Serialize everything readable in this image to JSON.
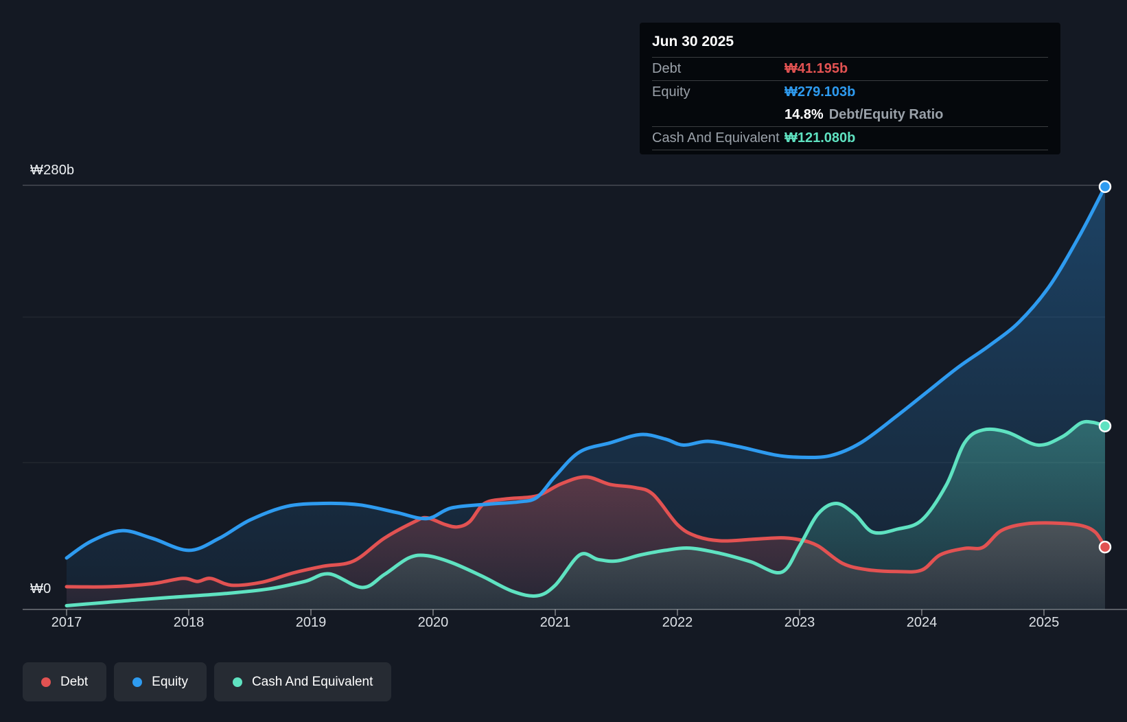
{
  "y_axis": {
    "top_label": "₩280b",
    "zero_label": "₩0"
  },
  "chart_data": {
    "type": "area",
    "x_ticks": [
      "2017",
      "2018",
      "2019",
      "2020",
      "2021",
      "2022",
      "2023",
      "2024",
      "2025"
    ],
    "x_range": [
      2017,
      2025.5
    ],
    "y_range": [
      0,
      280
    ],
    "y_unit": "KRW billions",
    "grid": true,
    "legend_position": "bottom-left",
    "last_point_date": "Jun 30 2025",
    "series": [
      {
        "name": "Debt",
        "color": "#e25252",
        "points": [
          [
            2017.0,
            15
          ],
          [
            2017.35,
            15
          ],
          [
            2017.7,
            17
          ],
          [
            2017.95,
            20.5
          ],
          [
            2018.07,
            18.5
          ],
          [
            2018.18,
            20.5
          ],
          [
            2018.35,
            16
          ],
          [
            2018.6,
            18
          ],
          [
            2018.85,
            24
          ],
          [
            2019.1,
            28.5
          ],
          [
            2019.35,
            32
          ],
          [
            2019.6,
            47
          ],
          [
            2019.85,
            58
          ],
          [
            2019.95,
            60.5
          ],
          [
            2020.1,
            56
          ],
          [
            2020.2,
            54.5
          ],
          [
            2020.3,
            58
          ],
          [
            2020.42,
            70
          ],
          [
            2020.6,
            73
          ],
          [
            2020.85,
            75
          ],
          [
            2021.05,
            83
          ],
          [
            2021.25,
            87.5
          ],
          [
            2021.45,
            82.5
          ],
          [
            2021.65,
            80.5
          ],
          [
            2021.8,
            76
          ],
          [
            2022.0,
            56
          ],
          [
            2022.15,
            48.5
          ],
          [
            2022.35,
            45.3
          ],
          [
            2022.6,
            46.2
          ],
          [
            2022.85,
            47.3
          ],
          [
            2023.0,
            46
          ],
          [
            2023.15,
            42
          ],
          [
            2023.35,
            30.5
          ],
          [
            2023.55,
            26.3
          ],
          [
            2023.8,
            25
          ],
          [
            2024.0,
            26
          ],
          [
            2024.15,
            36
          ],
          [
            2024.35,
            40.3
          ],
          [
            2024.5,
            41
          ],
          [
            2024.65,
            52
          ],
          [
            2024.85,
            56.5
          ],
          [
            2025.1,
            57
          ],
          [
            2025.3,
            55.5
          ],
          [
            2025.42,
            51
          ],
          [
            2025.5,
            41.195
          ]
        ]
      },
      {
        "name": "Equity",
        "color": "#2e9bf0",
        "points": [
          [
            2017.0,
            34
          ],
          [
            2017.2,
            45
          ],
          [
            2017.45,
            52
          ],
          [
            2017.7,
            47
          ],
          [
            2018.0,
            39
          ],
          [
            2018.25,
            47
          ],
          [
            2018.5,
            59
          ],
          [
            2018.8,
            68
          ],
          [
            2019.1,
            70
          ],
          [
            2019.4,
            69
          ],
          [
            2019.7,
            64
          ],
          [
            2019.95,
            60
          ],
          [
            2020.15,
            67
          ],
          [
            2020.45,
            69.5
          ],
          [
            2020.7,
            71
          ],
          [
            2020.85,
            74
          ],
          [
            2021.0,
            88
          ],
          [
            2021.2,
            104
          ],
          [
            2021.45,
            110
          ],
          [
            2021.7,
            115.5
          ],
          [
            2021.9,
            112.5
          ],
          [
            2022.05,
            108.5
          ],
          [
            2022.25,
            111
          ],
          [
            2022.5,
            107.5
          ],
          [
            2022.8,
            102
          ],
          [
            2023.0,
            100.5
          ],
          [
            2023.25,
            101.5
          ],
          [
            2023.5,
            110
          ],
          [
            2023.8,
            128
          ],
          [
            2024.05,
            144
          ],
          [
            2024.3,
            160
          ],
          [
            2024.55,
            174
          ],
          [
            2024.8,
            190
          ],
          [
            2025.05,
            214
          ],
          [
            2025.3,
            248
          ],
          [
            2025.5,
            279.103
          ]
        ]
      },
      {
        "name": "Cash And Equivalent",
        "color": "#5fe2c1",
        "points": [
          [
            2017.0,
            2.5
          ],
          [
            2017.3,
            4.5
          ],
          [
            2017.6,
            6.5
          ],
          [
            2017.95,
            8.5
          ],
          [
            2018.3,
            10.5
          ],
          [
            2018.65,
            13.5
          ],
          [
            2018.95,
            18.5
          ],
          [
            2019.15,
            23.5
          ],
          [
            2019.42,
            14.5
          ],
          [
            2019.6,
            23
          ],
          [
            2019.8,
            34
          ],
          [
            2019.95,
            35.5
          ],
          [
            2020.15,
            31
          ],
          [
            2020.4,
            22
          ],
          [
            2020.65,
            12
          ],
          [
            2020.85,
            9
          ],
          [
            2021.0,
            16
          ],
          [
            2021.2,
            36
          ],
          [
            2021.35,
            33
          ],
          [
            2021.5,
            32
          ],
          [
            2021.7,
            36
          ],
          [
            2021.9,
            39
          ],
          [
            2022.1,
            40.5
          ],
          [
            2022.35,
            37
          ],
          [
            2022.6,
            31.5
          ],
          [
            2022.85,
            24.5
          ],
          [
            2023.0,
            42
          ],
          [
            2023.15,
            63
          ],
          [
            2023.3,
            70
          ],
          [
            2023.45,
            63
          ],
          [
            2023.6,
            51
          ],
          [
            2023.8,
            53
          ],
          [
            2024.0,
            59
          ],
          [
            2024.2,
            82
          ],
          [
            2024.35,
            110
          ],
          [
            2024.5,
            118.5
          ],
          [
            2024.7,
            117
          ],
          [
            2024.95,
            108.5
          ],
          [
            2025.15,
            114
          ],
          [
            2025.3,
            123
          ],
          [
            2025.4,
            123.5
          ],
          [
            2025.5,
            121.08
          ]
        ]
      }
    ]
  },
  "tooltip": {
    "date": "Jun 30 2025",
    "debt": {
      "label": "Debt",
      "value": "₩41.195b"
    },
    "equity": {
      "label": "Equity",
      "value": "₩279.103b"
    },
    "ratio": {
      "value": "14.8%",
      "label": "Debt/Equity Ratio"
    },
    "cash": {
      "label": "Cash And Equivalent",
      "value": "₩121.080b"
    }
  },
  "legend": {
    "items": [
      {
        "label": "Debt"
      },
      {
        "label": "Equity"
      },
      {
        "label": "Cash And Equivalent"
      }
    ]
  }
}
